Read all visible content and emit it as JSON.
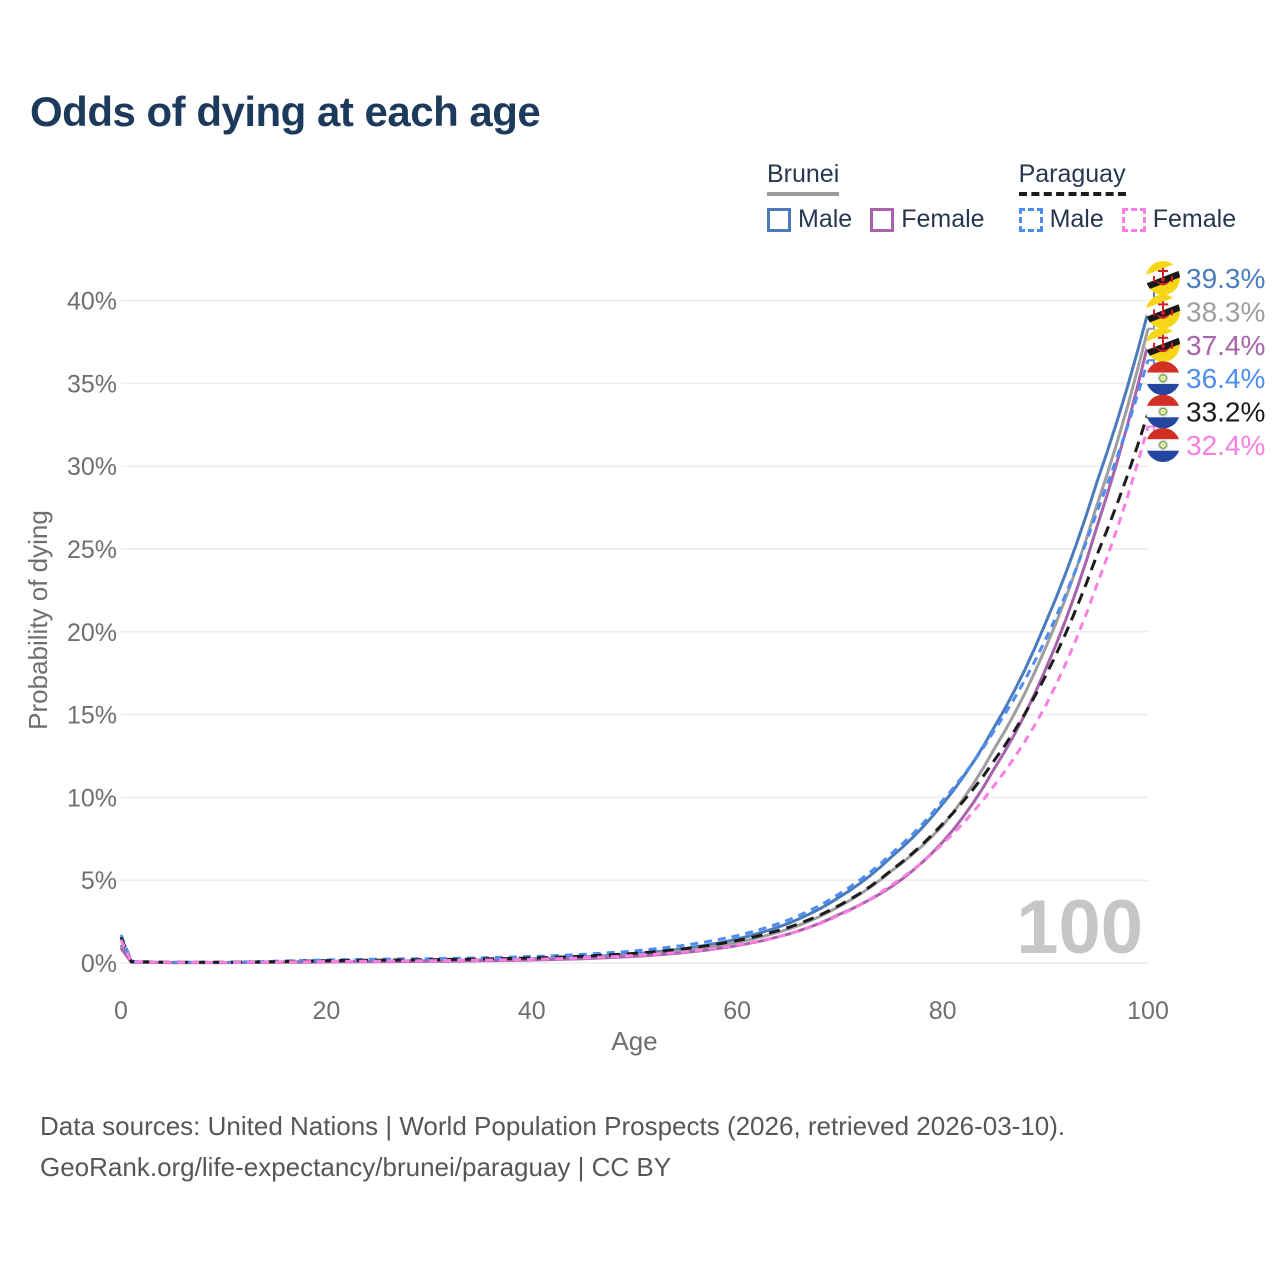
{
  "page": {
    "title": "Odds of dying at each age"
  },
  "legend": {
    "groups": [
      {
        "label": "Brunei",
        "underline_style": "solid",
        "underline_color": "#9b9b9b",
        "items": [
          {
            "label": "Male",
            "swatch_color": "#4a7cbb",
            "swatch_style": "solid"
          },
          {
            "label": "Female",
            "swatch_color": "#a763ab",
            "swatch_style": "solid"
          }
        ]
      },
      {
        "label": "Paraguay",
        "underline_style": "dashed",
        "underline_color": "#1c1c1c",
        "items": [
          {
            "label": "Male",
            "swatch_color": "#4e8df2",
            "swatch_style": "dashed"
          },
          {
            "label": "Female",
            "swatch_color": "#f980e2",
            "swatch_style": "dashed"
          }
        ]
      }
    ]
  },
  "footer": {
    "line1": "Data sources: United Nations | World Population Prospects (2026, retrieved 2026-03-10).",
    "line2": "GeoRank.org/life-expectancy/brunei/paraguay | CC BY"
  },
  "chart_data": {
    "type": "line",
    "title": "Odds of dying at each age",
    "xlabel": "Age",
    "ylabel": "Probability of dying",
    "xlim": [
      0,
      100
    ],
    "ylim_percent": [
      0,
      41.5
    ],
    "grid": "horizontal",
    "x_ticks": [
      0,
      20,
      40,
      60,
      80,
      100
    ],
    "x_tick_labels": [
      "0",
      "20",
      "40",
      "60",
      "80",
      "100"
    ],
    "y_ticks_percent": [
      0,
      5,
      10,
      15,
      20,
      25,
      30,
      35,
      40
    ],
    "y_tick_labels": [
      "0%",
      "5%",
      "10%",
      "15%",
      "20%",
      "25%",
      "30%",
      "35%",
      "40%"
    ],
    "hover_age": "100",
    "ages": [
      0,
      1,
      5,
      10,
      15,
      20,
      25,
      30,
      35,
      40,
      45,
      50,
      55,
      60,
      65,
      70,
      75,
      80,
      85,
      90,
      95,
      100
    ],
    "series": [
      {
        "name": "Male",
        "country": "Brunei",
        "flag": "brunei",
        "style": "solid",
        "color": "#4a7cbb",
        "final_label": "39.3%",
        "final_value": 39.3,
        "values": [
          1.1,
          0.06,
          0.03,
          0.03,
          0.06,
          0.1,
          0.12,
          0.14,
          0.18,
          0.25,
          0.36,
          0.55,
          0.88,
          1.45,
          2.4,
          4.0,
          6.4,
          9.6,
          14.2,
          20.5,
          29.0,
          39.3
        ]
      },
      {
        "name": "Both sexes",
        "country": "Brunei",
        "flag": "brunei",
        "style": "solid",
        "color": "#9e9e9e",
        "final_label": "38.3%",
        "final_value": 38.3,
        "values": [
          1.0,
          0.055,
          0.027,
          0.027,
          0.05,
          0.08,
          0.1,
          0.12,
          0.15,
          0.21,
          0.31,
          0.47,
          0.76,
          1.25,
          2.05,
          3.45,
          5.55,
          8.3,
          12.9,
          19.0,
          27.6,
          38.3
        ]
      },
      {
        "name": "Female",
        "country": "Brunei",
        "flag": "brunei",
        "style": "solid",
        "color": "#a763ab",
        "final_label": "37.4%",
        "final_value": 37.4,
        "values": [
          0.9,
          0.05,
          0.025,
          0.025,
          0.04,
          0.06,
          0.08,
          0.1,
          0.13,
          0.18,
          0.26,
          0.4,
          0.64,
          1.05,
          1.75,
          2.95,
          4.6,
          7.3,
          11.7,
          17.7,
          26.3,
          37.4
        ]
      },
      {
        "name": "Male",
        "country": "Paraguay",
        "flag": "paraguay",
        "style": "dashed",
        "color": "#4e8df2",
        "final_label": "36.4%",
        "final_value": 36.4,
        "values": [
          1.7,
          0.1,
          0.045,
          0.045,
          0.11,
          0.19,
          0.23,
          0.26,
          0.31,
          0.39,
          0.52,
          0.73,
          1.08,
          1.65,
          2.6,
          4.2,
          6.6,
          9.8,
          14.0,
          19.5,
          27.2,
          36.4
        ]
      },
      {
        "name": "Both sexes",
        "country": "Paraguay",
        "flag": "paraguay",
        "style": "dashed",
        "color": "#1c1c1c",
        "final_label": "33.2%",
        "final_value": 33.2,
        "values": [
          1.55,
          0.09,
          0.04,
          0.04,
          0.08,
          0.14,
          0.17,
          0.2,
          0.24,
          0.3,
          0.41,
          0.58,
          0.87,
          1.35,
          2.15,
          3.5,
          5.6,
          8.4,
          12.2,
          17.3,
          24.6,
          33.2
        ]
      },
      {
        "name": "Female",
        "country": "Paraguay",
        "flag": "paraguay",
        "style": "dashed",
        "color": "#f980e2",
        "final_label": "32.4%",
        "final_value": 32.4,
        "values": [
          1.4,
          0.08,
          0.035,
          0.035,
          0.06,
          0.09,
          0.11,
          0.14,
          0.17,
          0.22,
          0.31,
          0.45,
          0.68,
          1.08,
          1.75,
          2.9,
          4.7,
          7.2,
          10.7,
          15.5,
          22.8,
          32.4
        ]
      }
    ]
  }
}
